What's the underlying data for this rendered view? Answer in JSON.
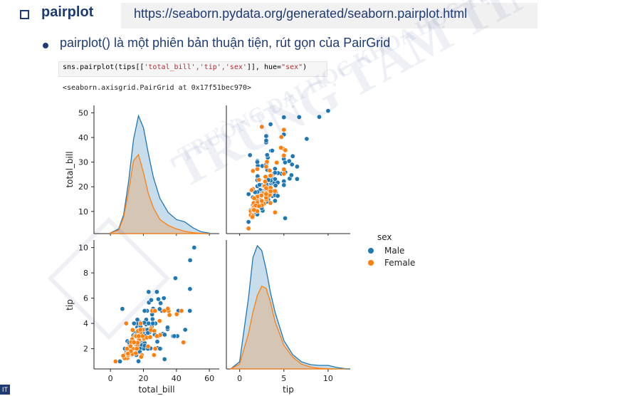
{
  "slide": {
    "title": "pairplot",
    "url": "https://seaborn.pydata.org/generated/seaborn.pairplot.html",
    "bullet": "pairplot() là một phiên bản thuận tiện, rút gọn của PairGrid",
    "code_prefix": "sns.pairplot(tips[[",
    "code_cols": "'total_bill','tip','sex'",
    "code_mid": "]], hue=",
    "code_hue": "\"sex\"",
    "code_suffix": ")",
    "output": "<seaborn.axisgrid.PairGrid at 0x17f51bec970>",
    "watermark_main": "TRUNG TÂM TIN HỌC",
    "watermark_sub": "TRƯỜNG ĐẠI HỌC KHOA HỌC TỰ NHIÊN",
    "corner_logo": "IT"
  },
  "chart_data": {
    "type": "scatter",
    "title": "",
    "variables": [
      "total_bill",
      "tip"
    ],
    "hue": "sex",
    "legend": {
      "title": "sex",
      "entries": [
        "Male",
        "Female"
      ],
      "position": "right"
    },
    "colors": {
      "Male": "#1f77b4",
      "Female": "#ff7f0e"
    },
    "axes": {
      "total_bill": {
        "label": "total_bill",
        "ticks_y": [
          10,
          20,
          30,
          40,
          50
        ],
        "ticks_x": [
          0,
          20,
          40,
          60
        ],
        "range_y": [
          1,
          53
        ],
        "range_x": [
          -10,
          66
        ]
      },
      "tip": {
        "label": "tip",
        "ticks_y": [
          2,
          4,
          6,
          8,
          10
        ],
        "ticks_x": [
          0,
          5,
          10
        ],
        "range_y": [
          0.4,
          10.6
        ],
        "range_x": [
          -1.5,
          12.5
        ]
      }
    },
    "series": [
      {
        "name": "Male",
        "points": [
          [
            16.99,
            1.01
          ],
          [
            10.34,
            1.66
          ],
          [
            21.01,
            3.5
          ],
          [
            23.68,
            3.31
          ],
          [
            25.29,
            4.71
          ],
          [
            8.77,
            2.0
          ],
          [
            26.88,
            3.12
          ],
          [
            15.04,
            1.96
          ],
          [
            14.78,
            3.23
          ],
          [
            10.27,
            1.71
          ],
          [
            15.42,
            1.57
          ],
          [
            18.43,
            3.0
          ],
          [
            21.58,
            3.92
          ],
          [
            16.29,
            3.71
          ],
          [
            20.65,
            3.35
          ],
          [
            17.92,
            4.08
          ],
          [
            39.42,
            7.58
          ],
          [
            19.82,
            3.18
          ],
          [
            17.81,
            2.34
          ],
          [
            13.37,
            2.0
          ],
          [
            12.69,
            2.0
          ],
          [
            21.7,
            4.3
          ],
          [
            19.65,
            3.0
          ],
          [
            9.55,
            1.45
          ],
          [
            18.35,
            2.5
          ],
          [
            15.06,
            3.0
          ],
          [
            20.69,
            2.45
          ],
          [
            17.78,
            3.27
          ],
          [
            24.06,
            3.6
          ],
          [
            16.31,
            2.0
          ],
          [
            18.69,
            2.31
          ],
          [
            31.27,
            5.0
          ],
          [
            16.04,
            2.24
          ],
          [
            17.46,
            2.54
          ],
          [
            13.94,
            3.06
          ],
          [
            9.68,
            1.32
          ],
          [
            30.4,
            5.6
          ],
          [
            18.29,
            3.0
          ],
          [
            22.23,
            5.0
          ],
          [
            32.4,
            6.0
          ],
          [
            28.55,
            2.05
          ],
          [
            18.04,
            3.0
          ],
          [
            12.54,
            2.5
          ],
          [
            10.29,
            2.6
          ],
          [
            34.81,
            5.2
          ],
          [
            9.94,
            1.56
          ],
          [
            25.56,
            4.34
          ],
          [
            19.49,
            3.51
          ],
          [
            38.01,
            3.0
          ],
          [
            11.24,
            1.76
          ],
          [
            48.27,
            6.73
          ],
          [
            20.29,
            3.21
          ],
          [
            13.81,
            2.0
          ],
          [
            11.02,
            1.98
          ],
          [
            18.29,
            3.76
          ],
          [
            17.59,
            2.64
          ],
          [
            20.08,
            3.15
          ],
          [
            20.23,
            2.01
          ],
          [
            15.01,
            2.09
          ],
          [
            12.02,
            1.97
          ],
          [
            10.51,
            1.25
          ],
          [
            29.03,
            5.92
          ],
          [
            50.81,
            10.0
          ],
          [
            15.81,
            3.16
          ],
          [
            7.25,
            5.15
          ],
          [
            31.85,
            3.18
          ],
          [
            16.82,
            4.0
          ],
          [
            32.9,
            3.11
          ],
          [
            17.89,
            2.0
          ],
          [
            14.48,
            2.0
          ],
          [
            34.63,
            3.55
          ],
          [
            34.65,
            3.68
          ],
          [
            23.33,
            5.65
          ],
          [
            45.35,
            3.5
          ],
          [
            23.17,
            6.5
          ],
          [
            40.55,
            3.0
          ],
          [
            20.69,
            5.0
          ],
          [
            30.46,
            2.0
          ],
          [
            23.1,
            4.0
          ],
          [
            24.01,
            2.0
          ],
          [
            15.69,
            1.5
          ],
          [
            48.17,
            5.0
          ],
          [
            25.0,
            3.75
          ],
          [
            28.44,
            2.56
          ],
          [
            15.48,
            2.02
          ],
          [
            16.58,
            4.0
          ],
          [
            7.56,
            1.44
          ],
          [
            10.34,
            2.0
          ],
          [
            43.11,
            5.0
          ],
          [
            13.0,
            2.0
          ],
          [
            12.74,
            2.01
          ],
          [
            18.28,
            4.0
          ],
          [
            41.19,
            5.0
          ],
          [
            27.05,
            5.0
          ],
          [
            48.33,
            9.0
          ],
          [
            20.45,
            3.0
          ],
          [
            13.28,
            2.72
          ],
          [
            24.08,
            2.92
          ],
          [
            11.69,
            2.31
          ],
          [
            38.73,
            3.0
          ],
          [
            24.27,
            2.03
          ],
          [
            28.17,
            6.5
          ],
          [
            32.83,
            1.17
          ],
          [
            35.83,
            4.67
          ],
          [
            29.03,
            5.92
          ],
          [
            22.67,
            2.0
          ],
          [
            17.82,
            1.75
          ],
          [
            9.78,
            1.73
          ],
          [
            26.41,
            1.5
          ],
          [
            44.3,
            2.5
          ],
          [
            22.12,
            2.88
          ],
          [
            15.98,
            3.0
          ],
          [
            13.03,
            2.0
          ],
          [
            14.31,
            4.0
          ],
          [
            25.89,
            5.16
          ],
          [
            17.31,
            3.5
          ],
          [
            24.71,
            5.85
          ],
          [
            21.16,
            3.0
          ],
          [
            28.97,
            3.0
          ],
          [
            22.49,
            3.5
          ],
          [
            5.75,
            1.0
          ],
          [
            16.32,
            4.3
          ],
          [
            22.75,
            3.25
          ],
          [
            40.17,
            4.73
          ],
          [
            27.28,
            4.0
          ],
          [
            12.03,
            1.5
          ],
          [
            21.01,
            3.0
          ],
          [
            12.46,
            1.5
          ],
          [
            11.35,
            2.5
          ],
          [
            15.38,
            3.0
          ],
          [
            20.76,
            2.24
          ],
          [
            30.06,
            2.0
          ],
          [
            25.71,
            4.0
          ],
          [
            18.24,
            3.76
          ],
          [
            20.49,
            4.06
          ],
          [
            29.85,
            5.14
          ]
        ]
      },
      {
        "name": "Female",
        "points": [
          [
            24.59,
            3.61
          ],
          [
            35.26,
            5.0
          ],
          [
            14.83,
            3.02
          ],
          [
            10.33,
            1.67
          ],
          [
            16.97,
            3.5
          ],
          [
            20.29,
            2.75
          ],
          [
            15.77,
            2.23
          ],
          [
            19.59,
            3.5
          ],
          [
            3.07,
            1.0
          ],
          [
            13.39,
            2.61
          ],
          [
            19.08,
            1.5
          ],
          [
            26.41,
            1.5
          ],
          [
            11.59,
            1.5
          ],
          [
            10.07,
            1.25
          ],
          [
            16.93,
            3.07
          ],
          [
            14.07,
            2.5
          ],
          [
            43.11,
            5.0
          ],
          [
            15.98,
            2.03
          ],
          [
            34.83,
            5.17
          ],
          [
            13.03,
            2.0
          ],
          [
            18.28,
            4.0
          ],
          [
            17.29,
            2.71
          ],
          [
            25.28,
            5.0
          ],
          [
            8.52,
            1.48
          ],
          [
            14.52,
            2.0
          ],
          [
            11.38,
            2.0
          ],
          [
            22.82,
            2.18
          ],
          [
            19.08,
            1.5
          ],
          [
            20.27,
            2.83
          ],
          [
            11.17,
            1.5
          ],
          [
            12.26,
            2.0
          ],
          [
            18.26,
            3.25
          ],
          [
            8.51,
            1.25
          ],
          [
            10.33,
            2.0
          ],
          [
            14.15,
            2.0
          ],
          [
            13.16,
            2.75
          ],
          [
            17.47,
            3.5
          ],
          [
            27.05,
            5.0
          ],
          [
            16.43,
            2.3
          ],
          [
            8.35,
            1.5
          ],
          [
            18.64,
            1.36
          ],
          [
            11.87,
            1.63
          ],
          [
            29.8,
            4.2
          ],
          [
            13.42,
            1.58
          ],
          [
            16.27,
            2.5
          ],
          [
            10.09,
            2.0
          ],
          [
            22.12,
            2.88
          ],
          [
            35.83,
            4.67
          ],
          [
            27.18,
            2.0
          ],
          [
            13.51,
            2.0
          ],
          [
            17.51,
            3.0
          ],
          [
            10.65,
            1.5
          ],
          [
            12.43,
            1.8
          ],
          [
            24.08,
            2.92
          ],
          [
            13.42,
            3.48
          ],
          [
            12.48,
            2.52
          ],
          [
            9.6,
            4.0
          ],
          [
            15.53,
            3.0
          ],
          [
            30.14,
            3.09
          ],
          [
            16.0,
            2.0
          ],
          [
            16.66,
            3.4
          ],
          [
            18.15,
            3.5
          ],
          [
            7.74,
            1.44
          ],
          [
            16.45,
            2.47
          ],
          [
            19.44,
            3.0
          ],
          [
            10.59,
            1.61
          ],
          [
            24.52,
            3.48
          ],
          [
            28.15,
            3.0
          ],
          [
            32.68,
            5.0
          ],
          [
            40.17,
            4.73
          ],
          [
            3.07,
            1.0
          ],
          [
            15.36,
            1.64
          ],
          [
            14.26,
            2.5
          ],
          [
            12.16,
            2.2
          ],
          [
            26.59,
            3.41
          ],
          [
            44.3,
            2.5
          ],
          [
            17.07,
            3.0
          ]
        ]
      }
    ],
    "kde": {
      "total_bill": {
        "x": [
          0,
          5,
          8,
          11,
          14,
          17,
          20,
          23,
          26,
          30,
          35,
          40,
          45,
          50,
          55,
          60
        ],
        "Male": [
          0.3,
          2,
          8,
          22,
          40,
          50,
          45,
          34,
          24,
          15,
          9,
          6,
          5,
          2.5,
          0.8,
          0.2
        ],
        "Female": [
          0.2,
          1.5,
          7,
          18,
          31,
          33.5,
          26,
          17,
          11,
          6,
          3.5,
          2,
          1,
          0.4,
          0.1,
          0
        ]
      },
      "tip": {
        "x": [
          -1,
          0,
          1,
          1.5,
          2,
          2.5,
          3,
          3.5,
          4,
          5,
          6,
          7,
          8,
          9,
          10,
          11,
          12
        ],
        "Male": [
          0.1,
          3,
          30,
          47,
          52,
          50,
          42,
          32,
          24,
          12,
          6,
          3,
          1.8,
          1.5,
          1.5,
          0.6,
          0.1
        ],
        "Female": [
          0.1,
          2,
          15,
          24,
          31,
          35,
          34,
          28,
          20,
          10,
          5,
          2,
          0.8,
          0.3,
          0.1,
          0,
          0
        ]
      }
    }
  }
}
